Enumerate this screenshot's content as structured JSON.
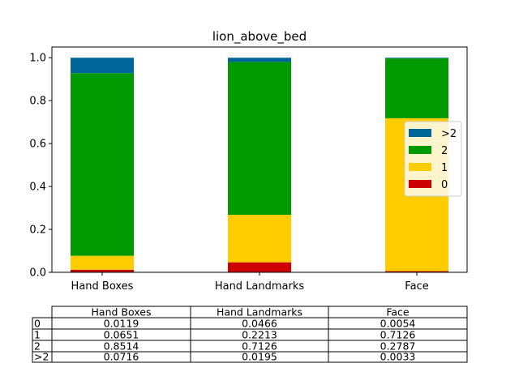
{
  "chart_data": {
    "type": "bar",
    "stacked": true,
    "title": "lion_above_bed",
    "categories": [
      "Hand Boxes",
      "Hand Landmarks",
      "Face"
    ],
    "ylim": [
      0,
      1.05
    ],
    "yticks": [
      "0.0",
      "0.2",
      "0.4",
      "0.6",
      "0.8",
      "1.0"
    ],
    "legend_position": "right",
    "grid": false,
    "series": [
      {
        "name": "0",
        "color": "#cc0000",
        "values": [
          0.0119,
          0.0466,
          0.0054
        ]
      },
      {
        "name": "1",
        "color": "#ffcc00",
        "values": [
          0.0651,
          0.2213,
          0.7126
        ]
      },
      {
        "name": "2",
        "color": "#009900",
        "values": [
          0.8514,
          0.7126,
          0.2787
        ]
      },
      {
        "name": ">2",
        "color": "#006699",
        "values": [
          0.0716,
          0.0195,
          0.0033
        ]
      }
    ],
    "table": {
      "columns": [
        "Hand Boxes",
        "Hand Landmarks",
        "Face"
      ],
      "rows": [
        {
          "label": "0",
          "cells": [
            "0.0119",
            "0.0466",
            "0.0054"
          ]
        },
        {
          "label": "1",
          "cells": [
            "0.0651",
            "0.2213",
            "0.7126"
          ]
        },
        {
          "label": "2",
          "cells": [
            "0.8514",
            "0.7126",
            "0.2787"
          ]
        },
        {
          "label": ">2",
          "cells": [
            "0.0716",
            "0.0195",
            "0.0033"
          ]
        }
      ]
    }
  }
}
